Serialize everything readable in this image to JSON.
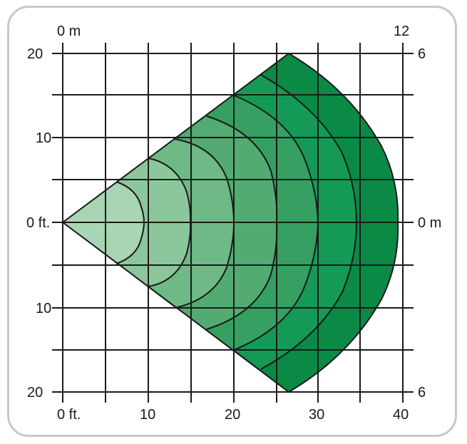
{
  "labels": {
    "top_left": "0 m",
    "top_right": "12",
    "left_20_top": "20",
    "left_10_top": "10",
    "left_0": "0 ft.",
    "left_10_bottom": "10",
    "left_20_bottom": "20",
    "right_6_top": "6",
    "right_0": "0 m",
    "right_6_bottom": "6",
    "bottom_0": "0 ft.",
    "bottom_10": "10",
    "bottom_20": "20",
    "bottom_30": "30",
    "bottom_40": "40"
  },
  "colors": {
    "zones": [
      "#a8d5b3",
      "#8cc79c",
      "#6fb986",
      "#52ab70",
      "#36a062",
      "#159a55",
      "#0a8a45"
    ],
    "grid": "#1a1a1a",
    "frame": "#c8c8c8"
  }
}
